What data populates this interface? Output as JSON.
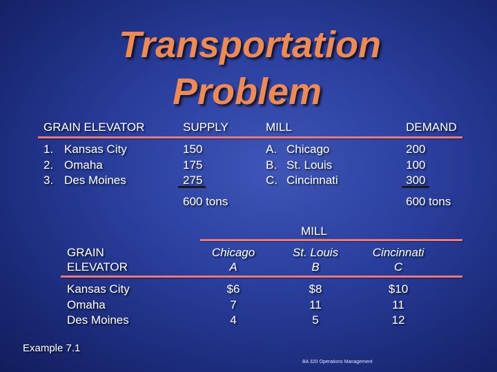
{
  "title": {
    "line1": "Transportation",
    "line2": "Problem"
  },
  "top_table": {
    "headers": {
      "elevator": "GRAIN ELEVATOR",
      "supply": "SUPPLY",
      "mill": "MILL",
      "demand": "DEMAND"
    },
    "elevators": [
      {
        "num": "1.",
        "name": "Kansas City"
      },
      {
        "num": "2.",
        "name": "Omaha"
      },
      {
        "num": "3.",
        "name": "Des Moines"
      }
    ],
    "supply": [
      "150",
      "175",
      "275"
    ],
    "mills": [
      {
        "letter": "A.",
        "name": "Chicago"
      },
      {
        "letter": "B.",
        "name": "St. Louis"
      },
      {
        "letter": "C.",
        "name": "Cincinnati"
      }
    ],
    "demand": [
      "200",
      "100",
      "300"
    ],
    "supply_total": "600  tons",
    "demand_total": "600  tons"
  },
  "cost_table": {
    "group_header": "MILL",
    "row_header": [
      "GRAIN",
      "ELEVATOR"
    ],
    "columns": [
      {
        "name": "Chicago",
        "letter": "A"
      },
      {
        "name": "St. Louis",
        "letter": "B"
      },
      {
        "name": "Cincinnati",
        "letter": "C"
      }
    ],
    "rows": [
      "Kansas City",
      "Omaha",
      "Des Moines"
    ],
    "costs": [
      [
        "$6",
        "7",
        "4"
      ],
      [
        "$8",
        "11",
        "5"
      ],
      [
        "$10",
        "11",
        "12"
      ]
    ]
  },
  "example_label": "Example 7.1",
  "footer": "BA 320 Operations Management",
  "colors": {
    "title": "#ef8a52",
    "rule": "#ef7a78",
    "background": "#2a3f9e"
  }
}
